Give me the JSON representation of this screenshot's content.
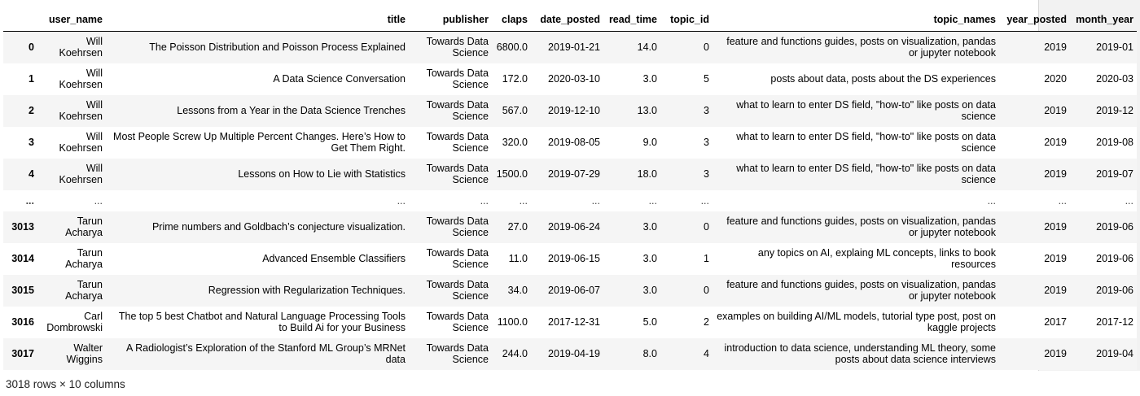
{
  "table": {
    "columns": [
      "",
      "user_name",
      "title",
      "publisher",
      "claps",
      "date_posted",
      "read_time",
      "topic_id",
      "topic_names",
      "year_posted",
      "month_year"
    ],
    "rows": [
      {
        "index": "0",
        "user_name": "Will Koehrsen",
        "title": "The Poisson Distribution and Poisson Process Explained",
        "publisher": "Towards Data Science",
        "claps": "6800.0",
        "date_posted": "2019-01-21",
        "read_time": "14.0",
        "topic_id": "0",
        "topic_names": "feature and functions guides, posts on visualization, pandas or jupyter notebook",
        "year_posted": "2019",
        "month_year": "2019-01"
      },
      {
        "index": "1",
        "user_name": "Will Koehrsen",
        "title": "A Data Science Conversation",
        "publisher": "Towards Data Science",
        "claps": "172.0",
        "date_posted": "2020-03-10",
        "read_time": "3.0",
        "topic_id": "5",
        "topic_names": "posts about data, posts about the DS experiences",
        "year_posted": "2020",
        "month_year": "2020-03"
      },
      {
        "index": "2",
        "user_name": "Will Koehrsen",
        "title": "Lessons from a Year in the Data Science Trenches",
        "publisher": "Towards Data Science",
        "claps": "567.0",
        "date_posted": "2019-12-10",
        "read_time": "13.0",
        "topic_id": "3",
        "topic_names": "what to learn to enter DS field, \"how-to\" like posts on data science",
        "year_posted": "2019",
        "month_year": "2019-12"
      },
      {
        "index": "3",
        "user_name": "Will Koehrsen",
        "title": "Most People Screw Up Multiple Percent Changes. Here’s How to Get Them Right.",
        "publisher": "Towards Data Science",
        "claps": "320.0",
        "date_posted": "2019-08-05",
        "read_time": "9.0",
        "topic_id": "3",
        "topic_names": "what to learn to enter DS field, \"how-to\" like posts on data science",
        "year_posted": "2019",
        "month_year": "2019-08"
      },
      {
        "index": "4",
        "user_name": "Will Koehrsen",
        "title": "Lessons on How to Lie with Statistics",
        "publisher": "Towards Data Science",
        "claps": "1500.0",
        "date_posted": "2019-07-29",
        "read_time": "18.0",
        "topic_id": "3",
        "topic_names": "what to learn to enter DS field, \"how-to\" like posts on data science",
        "year_posted": "2019",
        "month_year": "2019-07"
      },
      {
        "index": "...",
        "user_name": "...",
        "title": "...",
        "publisher": "...",
        "claps": "...",
        "date_posted": "...",
        "read_time": "...",
        "topic_id": "...",
        "topic_names": "...",
        "year_posted": "...",
        "month_year": "...",
        "ellipsis": true
      },
      {
        "index": "3013",
        "user_name": "Tarun Acharya",
        "title": "Prime numbers and Goldbach’s conjecture visualization.",
        "publisher": "Towards Data Science",
        "claps": "27.0",
        "date_posted": "2019-06-24",
        "read_time": "3.0",
        "topic_id": "0",
        "topic_names": "feature and functions guides, posts on visualization, pandas or jupyter notebook",
        "year_posted": "2019",
        "month_year": "2019-06"
      },
      {
        "index": "3014",
        "user_name": "Tarun Acharya",
        "title": "Advanced Ensemble Classifiers",
        "publisher": "Towards Data Science",
        "claps": "11.0",
        "date_posted": "2019-06-15",
        "read_time": "3.0",
        "topic_id": "1",
        "topic_names": "any topics on AI, explaing ML concepts, links to book resources",
        "year_posted": "2019",
        "month_year": "2019-06"
      },
      {
        "index": "3015",
        "user_name": "Tarun Acharya",
        "title": "Regression with Regularization Techniques.",
        "publisher": "Towards Data Science",
        "claps": "34.0",
        "date_posted": "2019-06-07",
        "read_time": "3.0",
        "topic_id": "0",
        "topic_names": "feature and functions guides, posts on visualization, pandas or jupyter notebook",
        "year_posted": "2019",
        "month_year": "2019-06"
      },
      {
        "index": "3016",
        "user_name": "Carl Dombrowski",
        "title": "The top 5 best Chatbot and Natural Language Processing Tools to Build Ai for your Business",
        "publisher": "Towards Data Science",
        "claps": "1100.0",
        "date_posted": "2017-12-31",
        "read_time": "5.0",
        "topic_id": "2",
        "topic_names": "examples on building AI/ML models, tutorial type post, post on kaggle projects",
        "year_posted": "2017",
        "month_year": "2017-12"
      },
      {
        "index": "3017",
        "user_name": "Walter Wiggins",
        "title": "A Radiologist’s Exploration of the Stanford ML Group’s MRNet data",
        "publisher": "Towards Data Science",
        "claps": "244.0",
        "date_posted": "2019-04-19",
        "read_time": "8.0",
        "topic_id": "4",
        "topic_names": "introduction to data science, understanding ML theory, some posts about data science interviews",
        "year_posted": "2019",
        "month_year": "2019-04"
      }
    ]
  },
  "shape_text": "3018 rows × 10 columns",
  "colors": {
    "odd_row": "#f5f5f5",
    "even_row": "#ffffff",
    "scroll_track": "#f2f2f2"
  }
}
